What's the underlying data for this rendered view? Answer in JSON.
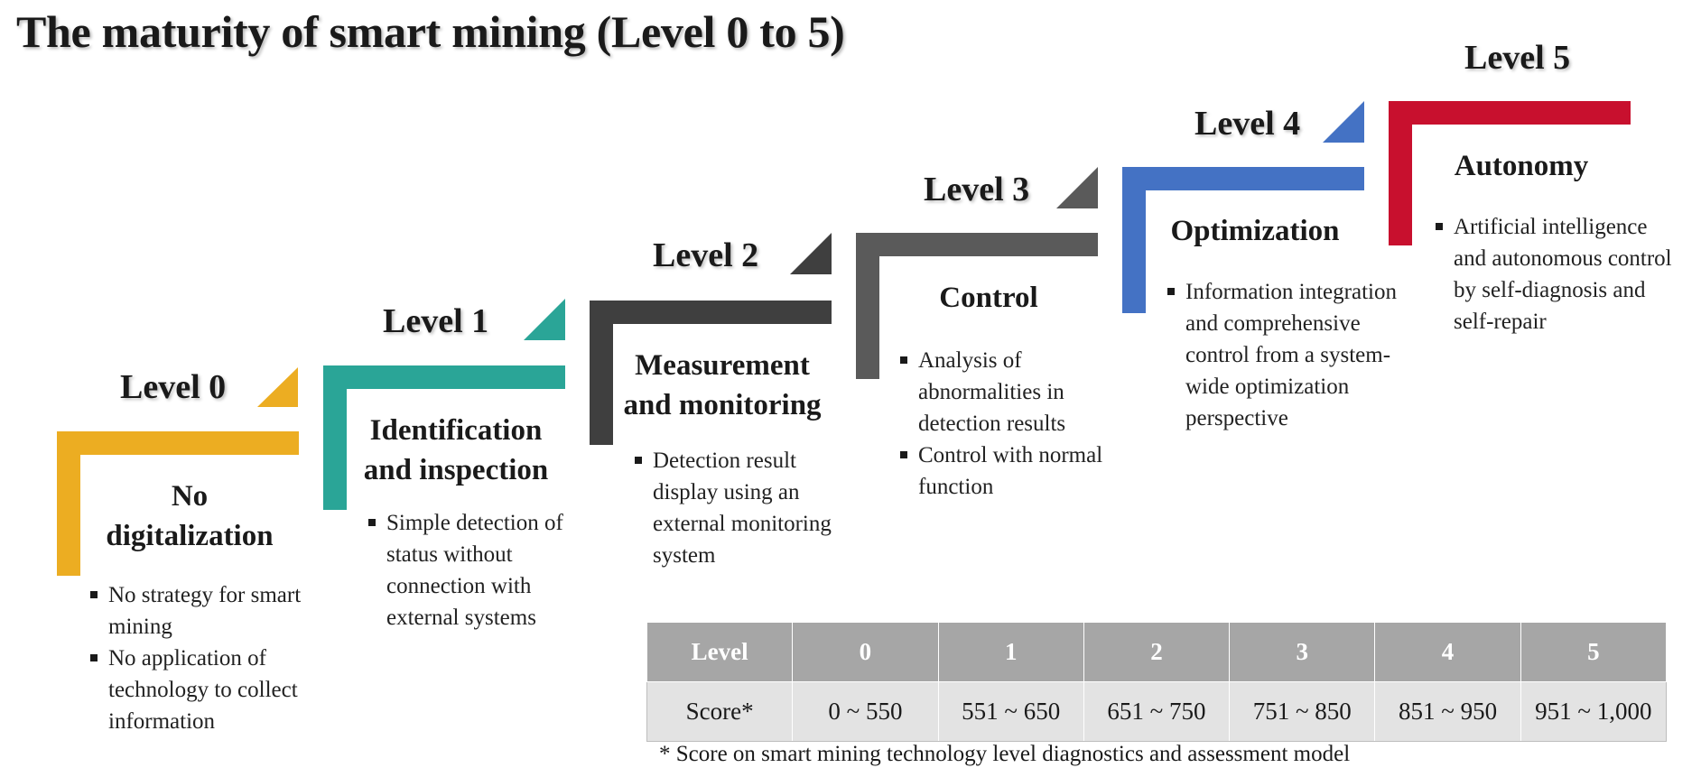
{
  "title": "The maturity of smart mining (Level 0 to 5)",
  "levels": [
    {
      "label": "Level 0",
      "name": "No digitalization",
      "name_lines": [
        "No",
        "digitalization"
      ],
      "color": "#ecad22",
      "bullets": [
        [
          "No strategy for smart",
          "mining"
        ],
        [
          "No application of",
          "technology to collect",
          "information"
        ]
      ]
    },
    {
      "label": "Level 1",
      "name": "Identification and inspection",
      "name_lines": [
        "Identification",
        "and inspection"
      ],
      "color": "#2aa597",
      "bullets": [
        [
          "Simple detection of",
          "status without",
          "connection with",
          "external systems"
        ]
      ]
    },
    {
      "label": "Level 2",
      "name": "Measurement and monitoring",
      "name_lines": [
        "Measurement",
        "and monitoring"
      ],
      "color": "#3f3f3f",
      "bullets": [
        [
          "Detection result",
          "display using an",
          "external monitoring",
          "system"
        ]
      ]
    },
    {
      "label": "Level 3",
      "name": "Control",
      "name_lines": [
        "Control"
      ],
      "color": "#5a5a5a",
      "bullets": [
        [
          "Analysis of",
          "abnormalities in",
          "detection results"
        ],
        [
          "Control with normal",
          "function"
        ]
      ]
    },
    {
      "label": "Level 4",
      "name": "Optimization",
      "name_lines": [
        "Optimization"
      ],
      "color": "#4472c4",
      "bullets": [
        [
          "Information integration",
          "and comprehensive",
          "control from a system-",
          "wide optimization",
          "perspective"
        ]
      ]
    },
    {
      "label": "Level 5",
      "name": "Autonomy",
      "name_lines": [
        "Autonomy"
      ],
      "color": "#c8102e",
      "bullets": [
        [
          "Artificial intelligence",
          "and autonomous control",
          "by self-diagnosis and",
          "self-repair"
        ]
      ]
    }
  ],
  "table": {
    "header": [
      "Level",
      "0",
      "1",
      "2",
      "3",
      "4",
      "5"
    ],
    "row": [
      "Score*",
      "0 ~ 550",
      "551 ~ 650",
      "651 ~ 750",
      "751 ~ 850",
      "851 ~ 950",
      "951 ~ 1,000"
    ]
  },
  "footnote": "* Score on smart mining technology level diagnostics  and assessment model"
}
